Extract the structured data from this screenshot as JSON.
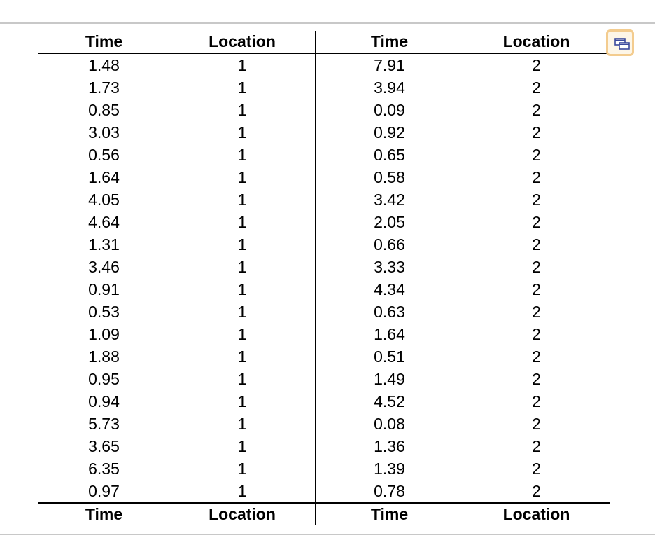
{
  "table": {
    "headers": [
      "Time",
      "Location",
      "Time",
      "Location"
    ],
    "footers": [
      "Time",
      "Location",
      "Time",
      "Location"
    ],
    "rows": [
      [
        "1.48",
        "1",
        "7.91",
        "2"
      ],
      [
        "1.73",
        "1",
        "3.94",
        "2"
      ],
      [
        "0.85",
        "1",
        "0.09",
        "2"
      ],
      [
        "3.03",
        "1",
        "0.92",
        "2"
      ],
      [
        "0.56",
        "1",
        "0.65",
        "2"
      ],
      [
        "1.64",
        "1",
        "0.58",
        "2"
      ],
      [
        "4.05",
        "1",
        "3.42",
        "2"
      ],
      [
        "4.64",
        "1",
        "2.05",
        "2"
      ],
      [
        "1.31",
        "1",
        "0.66",
        "2"
      ],
      [
        "3.46",
        "1",
        "3.33",
        "2"
      ],
      [
        "0.91",
        "1",
        "4.34",
        "2"
      ],
      [
        "0.53",
        "1",
        "0.63",
        "2"
      ],
      [
        "1.09",
        "1",
        "1.64",
        "2"
      ],
      [
        "1.88",
        "1",
        "0.51",
        "2"
      ],
      [
        "0.95",
        "1",
        "1.49",
        "2"
      ],
      [
        "0.94",
        "1",
        "4.52",
        "2"
      ],
      [
        "5.73",
        "1",
        "0.08",
        "2"
      ],
      [
        "3.65",
        "1",
        "1.36",
        "2"
      ],
      [
        "6.35",
        "1",
        "1.39",
        "2"
      ],
      [
        "0.97",
        "1",
        "0.78",
        "2"
      ]
    ]
  },
  "popout_button": {
    "icon": "popout-window-icon",
    "border_color": "#f3cc8f",
    "icon_color": "#3b4a9c"
  }
}
